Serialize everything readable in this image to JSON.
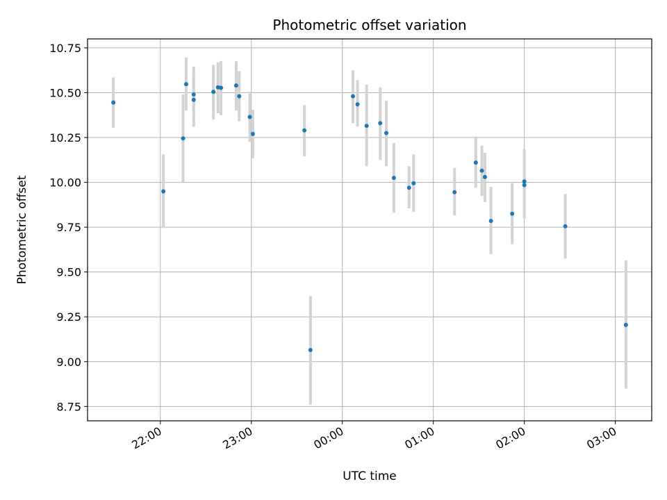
{
  "chart_data": {
    "type": "scatter",
    "title": "Photometric offset variation",
    "xlabel": "UTC time",
    "ylabel": "Photometric offset",
    "x_tick_labels": [
      "22:00",
      "23:00",
      "00:00",
      "01:00",
      "02:00",
      "03:00"
    ],
    "y_tick_labels": [
      "8.75",
      "9.00",
      "9.25",
      "9.50",
      "9.75",
      "10.00",
      "10.25",
      "10.50",
      "10.75"
    ],
    "x_ticks": [
      "2000-01-01T22:00",
      "2000-01-01T23:00",
      "2000-01-02T00:00",
      "2000-01-02T01:00",
      "2000-01-02T02:00",
      "2000-01-02T03:00"
    ],
    "y_ticks": [
      8.75,
      9.0,
      9.25,
      9.5,
      9.75,
      10.0,
      10.25,
      10.5,
      10.75
    ],
    "xlim": [
      "2000-01-01T21:12",
      "2000-01-02T03:24"
    ],
    "ylim": [
      8.67,
      10.8
    ],
    "grid": true,
    "colors": {
      "point": "#1f77b4",
      "errorbar": "#d3d3d3",
      "grid": "#b0b0b0",
      "axes": "#000000"
    },
    "points": [
      {
        "x": "2000-01-01T21:29",
        "y": 10.445,
        "lo": 10.305,
        "hi": 10.585
      },
      {
        "x": "2000-01-01T22:02",
        "y": 9.95,
        "lo": 9.745,
        "hi": 10.155
      },
      {
        "x": "2000-01-01T22:15",
        "y": 10.245,
        "lo": 10.0,
        "hi": 10.49
      },
      {
        "x": "2000-01-01T22:17",
        "y": 10.548,
        "lo": 10.4,
        "hi": 10.696
      },
      {
        "x": "2000-01-01T22:22",
        "y": 10.49,
        "lo": 10.395,
        "hi": 10.645
      },
      {
        "x": "2000-01-01T22:22",
        "y": 10.46,
        "lo": 10.31,
        "hi": 10.61
      },
      {
        "x": "2000-01-01T22:35",
        "y": 10.505,
        "lo": 10.35,
        "hi": 10.655
      },
      {
        "x": "2000-01-01T22:38",
        "y": 10.53,
        "lo": 10.385,
        "hi": 10.67
      },
      {
        "x": "2000-01-01T22:40",
        "y": 10.527,
        "lo": 10.375,
        "hi": 10.677
      },
      {
        "x": "2000-01-01T22:50",
        "y": 10.54,
        "lo": 10.4,
        "hi": 10.675
      },
      {
        "x": "2000-01-01T22:52",
        "y": 10.48,
        "lo": 10.34,
        "hi": 10.62
      },
      {
        "x": "2000-01-01T22:59",
        "y": 10.365,
        "lo": 10.225,
        "hi": 10.505
      },
      {
        "x": "2000-01-01T23:01",
        "y": 10.27,
        "lo": 10.135,
        "hi": 10.405
      },
      {
        "x": "2000-01-01T23:35",
        "y": 10.29,
        "lo": 10.145,
        "hi": 10.43
      },
      {
        "x": "2000-01-01T23:39",
        "y": 9.065,
        "lo": 8.76,
        "hi": 9.365
      },
      {
        "x": "2000-01-02T00:07",
        "y": 10.48,
        "lo": 10.33,
        "hi": 10.625
      },
      {
        "x": "2000-01-02T00:10",
        "y": 10.435,
        "lo": 10.31,
        "hi": 10.57
      },
      {
        "x": "2000-01-02T00:16",
        "y": 10.315,
        "lo": 10.09,
        "hi": 10.545
      },
      {
        "x": "2000-01-02T00:25",
        "y": 10.33,
        "lo": 10.125,
        "hi": 10.53
      },
      {
        "x": "2000-01-02T00:29",
        "y": 10.275,
        "lo": 10.09,
        "hi": 10.455
      },
      {
        "x": "2000-01-02T00:34",
        "y": 10.025,
        "lo": 9.83,
        "hi": 10.22
      },
      {
        "x": "2000-01-02T00:44",
        "y": 9.97,
        "lo": 9.855,
        "hi": 10.09
      },
      {
        "x": "2000-01-02T00:47",
        "y": 9.995,
        "lo": 9.835,
        "hi": 10.155
      },
      {
        "x": "2000-01-02T01:14",
        "y": 9.945,
        "lo": 9.815,
        "hi": 10.08
      },
      {
        "x": "2000-01-02T01:28",
        "y": 10.11,
        "lo": 9.97,
        "hi": 10.255
      },
      {
        "x": "2000-01-02T01:32",
        "y": 10.065,
        "lo": 9.925,
        "hi": 10.205
      },
      {
        "x": "2000-01-02T01:34",
        "y": 10.03,
        "lo": 9.89,
        "hi": 10.165
      },
      {
        "x": "2000-01-02T01:38",
        "y": 9.785,
        "lo": 9.6,
        "hi": 9.975
      },
      {
        "x": "2000-01-02T01:52",
        "y": 9.825,
        "lo": 9.655,
        "hi": 9.995
      },
      {
        "x": "2000-01-02T02:00",
        "y": 9.985,
        "lo": 9.8,
        "hi": 10.16
      },
      {
        "x": "2000-01-02T02:00",
        "y": 10.005,
        "lo": 9.825,
        "hi": 10.185
      },
      {
        "x": "2000-01-02T02:27",
        "y": 9.755,
        "lo": 9.575,
        "hi": 9.935
      },
      {
        "x": "2000-01-02T03:07",
        "y": 9.205,
        "lo": 8.85,
        "hi": 9.565
      }
    ]
  }
}
